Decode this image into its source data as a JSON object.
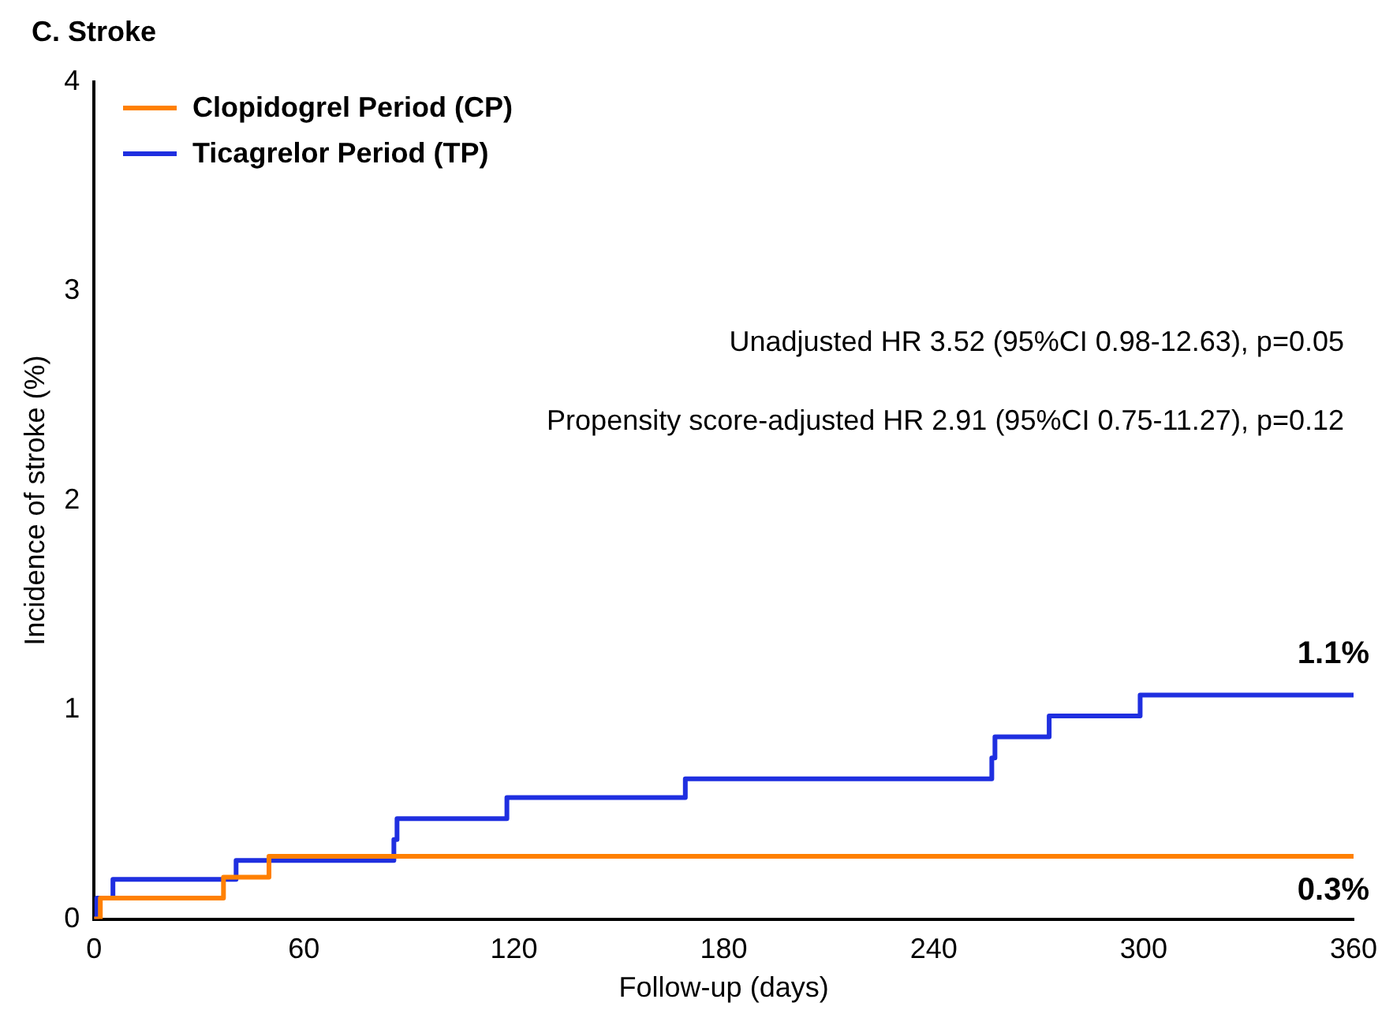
{
  "chart_data": {
    "type": "step",
    "title": "C. Stroke",
    "xlabel": "Follow-up (days)",
    "ylabel": "Incidence of stroke (%)",
    "series": [
      {
        "name": "Clopidogrel Period (CP)",
        "color": "#ff8000",
        "x": [
          0,
          1.8,
          37,
          50,
          360
        ],
        "values": [
          0,
          0.1,
          0.2,
          0.3,
          0.3
        ]
      },
      {
        "name": "Ticagrelor Period (TP)",
        "color": "#1f2fe0",
        "x": [
          0,
          0.8,
          5.4,
          40.6,
          85.7,
          86.6,
          118,
          169,
          256.6,
          257.5,
          273,
          299,
          360
        ],
        "values": [
          0,
          0.1,
          0.19,
          0.28,
          0.38,
          0.48,
          0.58,
          0.67,
          0.77,
          0.87,
          0.97,
          1.07,
          1.07
        ]
      }
    ],
    "xlim": [
      0,
      360
    ],
    "xticks": [
      0,
      60,
      120,
      180,
      240,
      300,
      360
    ],
    "ylim": [
      0,
      4
    ],
    "yticks": [
      0,
      1,
      2,
      3,
      4
    ],
    "grid": false,
    "legend": "top left",
    "marker": "none",
    "line_style": "solid",
    "annotations": [
      "Unadjusted HR 3.52 (95%CI 0.98-12.63), p=0.05",
      "Propensity score-adjusted HR 2.91 (95%CI 0.75-11.27), p=0.12",
      {
        "text": "1.1%",
        "x": 360,
        "y": 1.07
      },
      {
        "text": "0.3%",
        "x": 360,
        "y": 0.3
      }
    ]
  }
}
